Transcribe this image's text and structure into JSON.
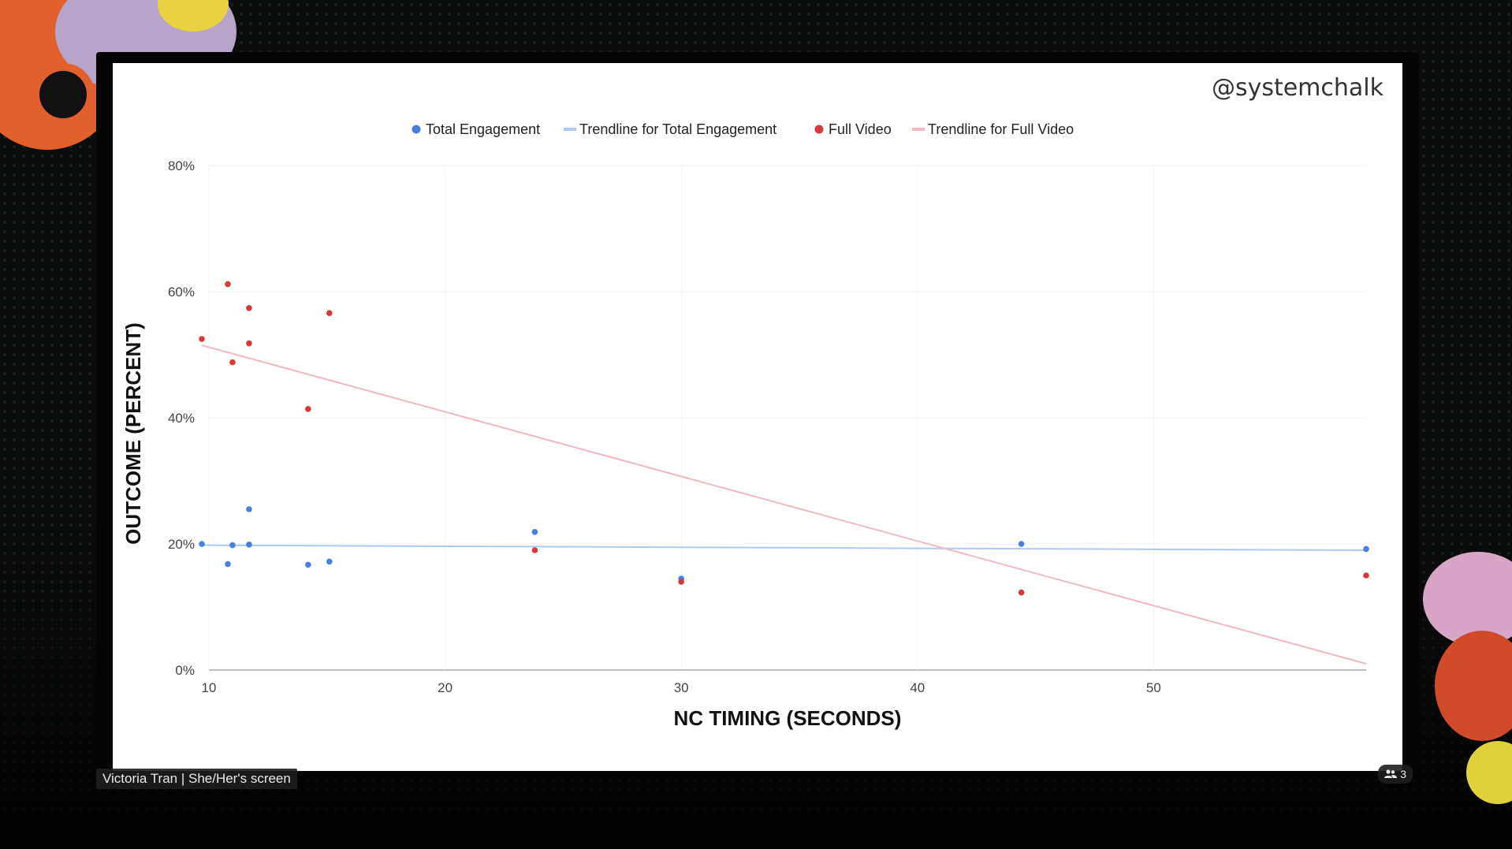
{
  "slide": {
    "handle": "@systemchalk"
  },
  "caption": "Victoria Tran | She/Her's screen",
  "participants": {
    "count": "3",
    "icon": "people-icon"
  },
  "colors": {
    "total_engagement": "#4a7fdc",
    "full_video": "#d33b3b",
    "trend_total": "#aec8f0",
    "trend_full": "#f0b9c0"
  },
  "chart_data": {
    "type": "scatter",
    "xlabel": "NC TIMING (SECONDS)",
    "ylabel": "OUTCOME (PERCENT)",
    "xlim": [
      10,
      59
    ],
    "ylim": [
      0,
      80
    ],
    "x_ticks": [
      10,
      20,
      30,
      40,
      50
    ],
    "y_ticks": [
      "0%",
      "20%",
      "40%",
      "60%",
      "80%"
    ],
    "y_tick_values": [
      0,
      20,
      40,
      60,
      80
    ],
    "grid": true,
    "legend_position": "top",
    "legend": [
      "Total Engagement",
      "Trendline for Total Engagement",
      "Full Video",
      "Trendline for Full Video"
    ],
    "series": [
      {
        "name": "Total Engagement",
        "color": "#4a7fdc",
        "points": [
          [
            9.7,
            20
          ],
          [
            10.8,
            16.8
          ],
          [
            11.0,
            19.8
          ],
          [
            11.7,
            19.9
          ],
          [
            11.7,
            25.5
          ],
          [
            14.2,
            16.7
          ],
          [
            15.1,
            17.2
          ],
          [
            23.8,
            21.9
          ],
          [
            30.0,
            14.5
          ],
          [
            44.4,
            20
          ],
          [
            59.0,
            19.2
          ]
        ]
      },
      {
        "name": "Full Video",
        "color": "#d33b3b",
        "points": [
          [
            9.7,
            52.5
          ],
          [
            10.8,
            61.2
          ],
          [
            11.0,
            48.8
          ],
          [
            11.7,
            57.4
          ],
          [
            11.7,
            51.8
          ],
          [
            14.2,
            41.4
          ],
          [
            15.1,
            56.6
          ],
          [
            23.8,
            19.0
          ],
          [
            30.0,
            14.0
          ],
          [
            44.4,
            12.3
          ],
          [
            59.0,
            15.0
          ]
        ]
      }
    ],
    "trendlines": [
      {
        "name": "Trendline for Total Engagement",
        "color": "#aec8f0",
        "from": [
          9.7,
          19.8
        ],
        "to": [
          59.0,
          19.0
        ]
      },
      {
        "name": "Trendline for Full Video",
        "color": "#f0b9c0",
        "from": [
          9.7,
          51.5
        ],
        "to": [
          59.0,
          1.0
        ]
      }
    ]
  }
}
